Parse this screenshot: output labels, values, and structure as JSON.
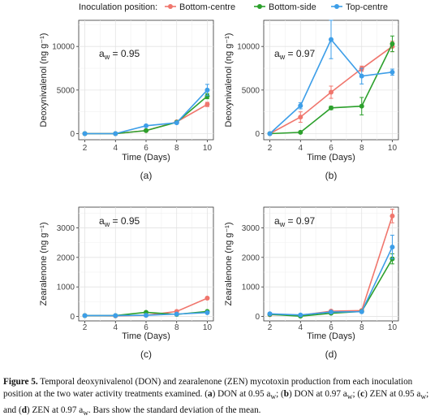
{
  "legend": {
    "title": "Inoculation position:",
    "colors": {
      "Bottom-centre": "#F0766D",
      "Bottom-side": "#2CA02C",
      "Top-centre": "#3D9EE8"
    }
  },
  "chart_data": [
    {
      "type": "line",
      "panel_label": "(a)",
      "annotation": "aw = 0.95",
      "xlabel": "Time (Days)",
      "ylabel": "Deoxynivalenol (ng g⁻¹)",
      "x": [
        2,
        4,
        6,
        8,
        10
      ],
      "xticks": [
        "2",
        "4",
        "6",
        "8",
        "10"
      ],
      "ylim": [
        -700,
        13000
      ],
      "yticks": [
        0,
        5000,
        10000
      ],
      "ytick_labels": [
        "0",
        "5000",
        "10000"
      ],
      "series": [
        {
          "name": "Bottom-centre",
          "values": [
            0,
            0,
            350,
            1350,
            3350
          ],
          "errors": [
            0,
            0,
            50,
            100,
            250
          ]
        },
        {
          "name": "Bottom-side",
          "values": [
            0,
            0,
            350,
            1300,
            4300
          ],
          "errors": [
            0,
            0,
            50,
            100,
            300
          ]
        },
        {
          "name": "Top-centre",
          "values": [
            0,
            0,
            900,
            1250,
            5000
          ],
          "errors": [
            0,
            0,
            100,
            100,
            650
          ]
        }
      ]
    },
    {
      "type": "line",
      "panel_label": "(b)",
      "annotation": "aw = 0.97",
      "xlabel": "Time (Days)",
      "ylabel": "Deoxynivalenol (ng g⁻¹)",
      "x": [
        2,
        4,
        6,
        8,
        10
      ],
      "xticks": [
        "2",
        "4",
        "6",
        "8",
        "10"
      ],
      "ylim": [
        -700,
        13000
      ],
      "yticks": [
        0,
        5000,
        10000
      ],
      "ytick_labels": [
        "0",
        "5000",
        "10000"
      ],
      "series": [
        {
          "name": "Bottom-centre",
          "values": [
            0,
            1900,
            4750,
            7450,
            10000
          ],
          "errors": [
            0,
            600,
            700,
            300,
            600
          ]
        },
        {
          "name": "Bottom-side",
          "values": [
            0,
            150,
            2950,
            3150,
            10300
          ],
          "errors": [
            0,
            50,
            200,
            1000,
            900
          ]
        },
        {
          "name": "Top-centre",
          "values": [
            0,
            3200,
            10800,
            6600,
            7050
          ],
          "errors": [
            0,
            350,
            2200,
            900,
            350
          ]
        }
      ]
    },
    {
      "type": "line",
      "panel_label": "(c)",
      "annotation": "aw = 0.95",
      "xlabel": "Time (Days)",
      "ylabel": "Zearalenone (ng g⁻¹)",
      "x": [
        2,
        4,
        6,
        8,
        10
      ],
      "xticks": [
        "2",
        "4",
        "6",
        "8",
        "10"
      ],
      "ylim": [
        -150,
        3700
      ],
      "yticks": [
        0,
        1000,
        2000,
        3000
      ],
      "ytick_labels": [
        "0",
        "1000",
        "2000",
        "3000"
      ],
      "series": [
        {
          "name": "Bottom-centre",
          "values": [
            30,
            20,
            40,
            170,
            620
          ],
          "errors": [
            0,
            0,
            10,
            20,
            40
          ]
        },
        {
          "name": "Bottom-side",
          "values": [
            30,
            30,
            140,
            70,
            170
          ],
          "errors": [
            0,
            0,
            20,
            15,
            30
          ]
        },
        {
          "name": "Top-centre",
          "values": [
            30,
            30,
            40,
            80,
            130
          ],
          "errors": [
            0,
            0,
            10,
            10,
            20
          ]
        }
      ]
    },
    {
      "type": "line",
      "panel_label": "(d)",
      "annotation": "aw = 0.97",
      "xlabel": "Time (Days)",
      "ylabel": "Zearalenone (ng g⁻¹)",
      "x": [
        2,
        4,
        6,
        8,
        10
      ],
      "xticks": [
        "2",
        "4",
        "6",
        "8",
        "10"
      ],
      "ylim": [
        -150,
        3700
      ],
      "yticks": [
        0,
        1000,
        2000,
        3000
      ],
      "ytick_labels": [
        "0",
        "1000",
        "2000",
        "3000"
      ],
      "series": [
        {
          "name": "Bottom-centre",
          "values": [
            60,
            40,
            180,
            200,
            3400
          ],
          "errors": [
            20,
            10,
            30,
            40,
            230
          ]
        },
        {
          "name": "Bottom-side",
          "values": [
            70,
            10,
            110,
            170,
            1950
          ],
          "errors": [
            20,
            10,
            20,
            30,
            170
          ]
        },
        {
          "name": "Top-centre",
          "values": [
            90,
            50,
            150,
            160,
            2350
          ],
          "errors": [
            20,
            10,
            20,
            30,
            400
          ]
        }
      ]
    }
  ],
  "caption": {
    "lead": "Figure 5.",
    "text1": " Temporal deoxynivalenol (DON) and zearalenone (ZEN) mycotoxin production from each inoculation position at the two water activity treatments examined. (",
    "a": "a",
    "text2": ") DON at 0.95 a",
    "text3": "; (",
    "b": "b",
    "text4": ") DON at 0.97 a",
    "text5": "; (",
    "c": "c",
    "text6": ") ZEN at 0.95 a",
    "text7": "; and (",
    "d": "d",
    "text8": ") ZEN at 0.97 a",
    "text9": ". Bars show the standard deviation of the mean.",
    "sub": "w"
  }
}
